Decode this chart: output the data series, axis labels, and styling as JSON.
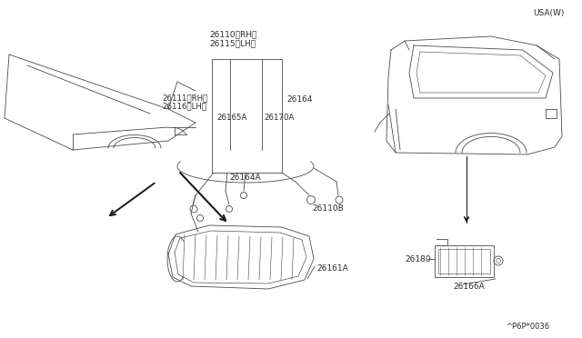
{
  "bg_color": "#ffffff",
  "line_color": "#4a4a4a",
  "text_color": "#2a2a2a",
  "fig_width": 6.4,
  "fig_height": 3.72,
  "dpi": 100,
  "usa_label": "USA(W)",
  "part_code": "^P6P*0036",
  "label_26110": "26110〈RH〉",
  "label_26115": "26115〈LH〉",
  "label_26111": "26111〈RH〉",
  "label_26116": "26116〈LH〉",
  "label_26164": "26164",
  "label_26165A": "26165A",
  "label_26170A": "26170A",
  "label_26164A": "26164A",
  "label_26110B": "26110B",
  "label_26161A": "26161A",
  "label_26180": "26180",
  "label_26166A": "26166A"
}
